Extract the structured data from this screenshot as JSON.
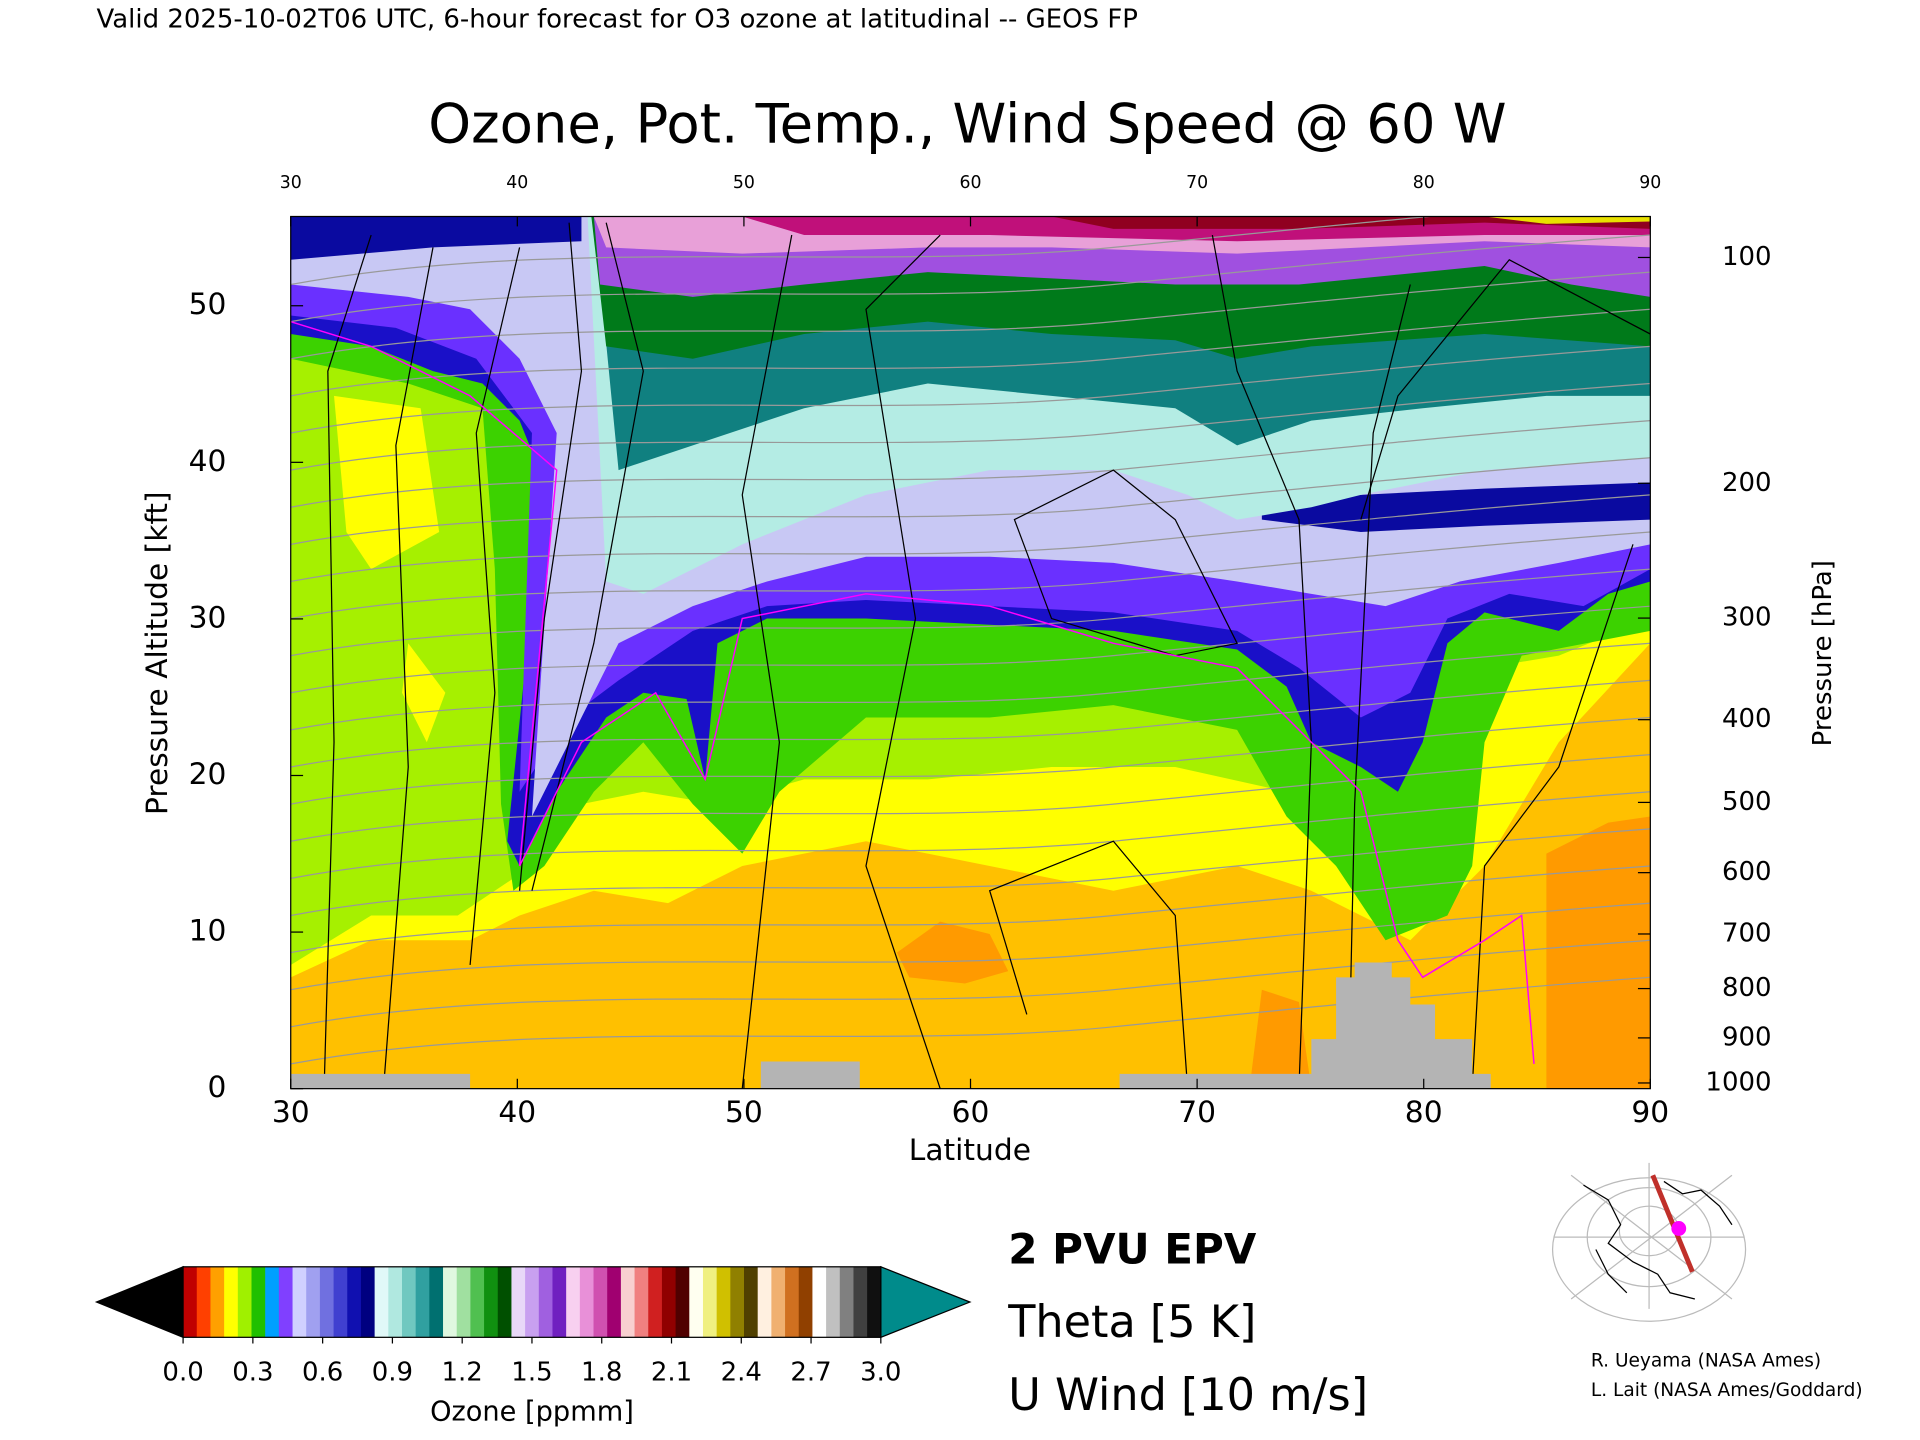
{
  "chart_data": {
    "type": "contour",
    "header": "Valid 2025-10-02T06 UTC, 6-hour forecast for O3 ozone at latitudinal -- GEOS FP",
    "title": "Ozone, Pot. Temp., Wind Speed @ 60 W",
    "xlabel": "Latitude",
    "ylabel": "Pressure Altitude [kft]",
    "y2label": "Pressure [hPa]",
    "xlim": [
      30,
      90
    ],
    "xticks": [
      30,
      40,
      50,
      60,
      70,
      80,
      90
    ],
    "ylim": [
      0,
      55.7
    ],
    "yticks": [
      0,
      10,
      20,
      30,
      40,
      50
    ],
    "y2scale": "standard-atmosphere",
    "y2ticks": [
      100,
      200,
      300,
      400,
      500,
      600,
      700,
      800,
      900,
      1000
    ],
    "series": [
      {
        "name": "2 PVU EPV",
        "color": "#ff00ff"
      },
      {
        "name": "Theta [5 K]",
        "color": "#b4b4b4"
      },
      {
        "name": "U Wind [10 m/s]",
        "color": "#000000"
      }
    ],
    "colorbar": {
      "label": "Ozone [ppmm]",
      "lim": [
        0,
        3
      ],
      "ticks": [
        {
          "value": 0,
          "label": "0.0"
        },
        0.3,
        0.6,
        0.9,
        1.2,
        1.5,
        1.8,
        2.1,
        2.4,
        2.7,
        {
          "value": 3,
          "label": "3.0"
        }
      ],
      "under_color": "#000000",
      "over_color": "#008b8b",
      "colors": [
        "#c00000",
        "#ff4000",
        "#ffa000",
        "#ffff00",
        "#a0f000",
        "#20c000",
        "#00a0ff",
        "#8040ff",
        "#d0d0ff",
        "#a0a0f0",
        "#7070e0",
        "#4040d0",
        "#1010b0",
        "#000080",
        "#e0f8f8",
        "#b0e8e0",
        "#70c8c0",
        "#30a0a0",
        "#007070",
        "#e0f8e0",
        "#a0e0a0",
        "#50c050",
        "#109010",
        "#005000",
        "#e8d8f8",
        "#c8a0f0",
        "#a060e0",
        "#7020c0",
        "#f8d0f0",
        "#e890d8",
        "#d050b0",
        "#a00070",
        "#f8d0d0",
        "#f08080",
        "#d02020",
        "#900000",
        "#500000",
        "#fffff0",
        "#f0f080",
        "#d0c000",
        "#908000",
        "#504000",
        "#fff0e0",
        "#f0b070",
        "#d07020",
        "#904000",
        "#ffffff",
        "#c0c0c0",
        "#808080",
        "#404040",
        "#101010"
      ]
    },
    "credits": [
      "R. Ueyama (NASA Ames)",
      "L. Lait (NASA Ames/Goddard)"
    ]
  }
}
